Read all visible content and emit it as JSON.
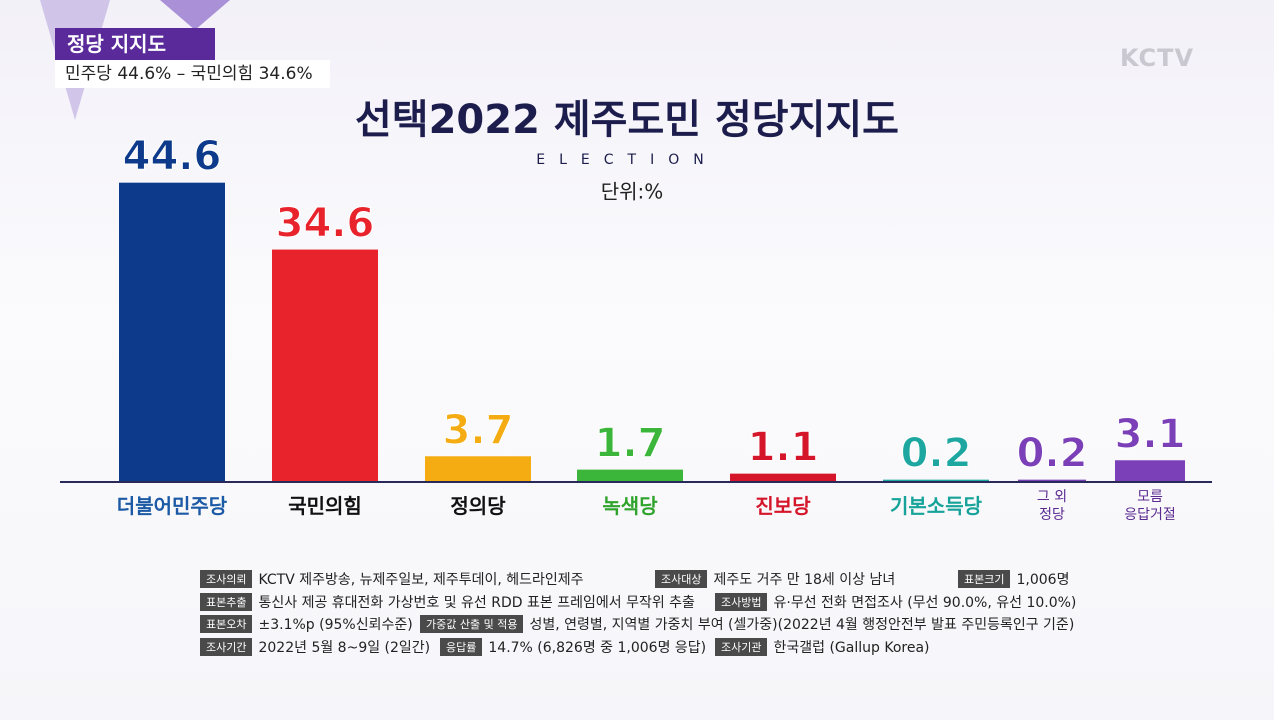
{
  "header": {
    "badge": "정당 지지도",
    "summary": "민주당 44.6% – 국민의힘 34.6%",
    "logo": "KCTV"
  },
  "chart_data": {
    "type": "bar",
    "title": "선택2022 제주도민 정당지지도",
    "subtitle": "ELECTION",
    "unit_note": "단위:%",
    "categories": [
      "더불어민주당",
      "국민의힘",
      "정의당",
      "녹색당",
      "진보당",
      "기본소득당",
      "그 외\n정당",
      "모름\n응답거절"
    ],
    "values": [
      44.6,
      34.6,
      3.7,
      1.7,
      1.1,
      0.2,
      0.2,
      3.1
    ],
    "colors": [
      "#0d3a8a",
      "#e8232b",
      "#f5ac12",
      "#3cb63a",
      "#d5152a",
      "#1ea7a0",
      "#7b3fb8",
      "#7b3fb8"
    ],
    "label_colors": [
      "#1d5aa6",
      "#111111",
      "#111111",
      "#2fa32c",
      "#d5152a",
      "#17a39a",
      "#5b2a91",
      "#5b2a91"
    ],
    "ylim": [
      0,
      45
    ]
  },
  "footer": {
    "items": [
      {
        "label": "조사의뢰",
        "text": "KCTV 제주방송, 뉴제주일보, 제주투데이, 헤드라인제주"
      },
      {
        "label": "조사대상",
        "text": "제주도 거주 만 18세 이상 남녀"
      },
      {
        "label": "표본크기",
        "text": "1,006명"
      },
      {
        "label": "표본추출",
        "text": "통신사 제공 휴대전화 가상번호 및 유선 RDD 표본 프레임에서 무작위 추출"
      },
      {
        "label": "조사방법",
        "text": "유·무선 전화 면접조사 (무선 90.0%, 유선 10.0%)"
      },
      {
        "label": "표본오차",
        "text": "±3.1%p (95%신뢰수준)"
      },
      {
        "label": "가중값 산출 및 적용",
        "text": "성별, 연령별, 지역별 가중치 부여 (셀가중)(2022년 4월 행정안전부 발표 주민등록인구 기준)"
      },
      {
        "label": "조사기간",
        "text": "2022년 5월 8~9일 (2일간)"
      },
      {
        "label": "응답률",
        "text": "14.7% (6,826명 중 1,006명 응답)"
      },
      {
        "label": "조사기관",
        "text": "한국갤럽 (Gallup Korea)"
      }
    ]
  }
}
